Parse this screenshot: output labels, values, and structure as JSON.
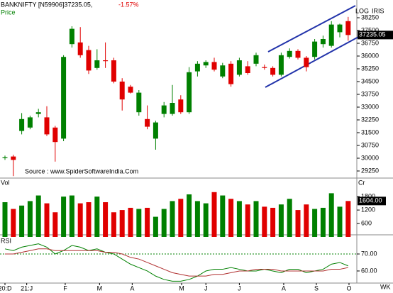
{
  "chart_data": [
    {
      "type": "candlestick",
      "title": "BANKNIFTY [N59906]37235.05,",
      "change": "-1.57%",
      "subtitle": "Price",
      "scale_label": "LOG",
      "brand": "IRIS",
      "source": "Source : www.SpiderSoftwareIndia.Com",
      "up_color": "#008000",
      "down_color": "#e00000",
      "open": [
        30000,
        30100,
        31600,
        31800,
        32600,
        32400,
        31800,
        31150,
        36700,
        36800,
        36350,
        35300,
        35750,
        35750,
        34500,
        34200,
        32700,
        32300,
        31150,
        32600,
        32600,
        33450,
        32700,
        35100,
        35450,
        35650,
        34800,
        35550,
        34900,
        35400,
        35550,
        35350,
        35300,
        34900,
        35950,
        36300,
        35900,
        35950,
        36700,
        36600,
        37400,
        38050
      ],
      "high": [
        30150,
        30200,
        32650,
        32500,
        32900,
        33050,
        31900,
        36050,
        37750,
        37700,
        36600,
        36400,
        36800,
        35900,
        34700,
        34300,
        34000,
        33100,
        32200,
        33300,
        34300,
        33700,
        35350,
        35700,
        35750,
        35900,
        35600,
        35700,
        35900,
        35700,
        36200,
        35500,
        35400,
        36200,
        36450,
        36400,
        36000,
        37000,
        37200,
        38050,
        37900,
        38300
      ],
      "low": [
        29900,
        28950,
        31400,
        31700,
        32400,
        31300,
        29800,
        31000,
        36500,
        35900,
        34950,
        35200,
        35300,
        34400,
        32800,
        33800,
        32500,
        31700,
        30500,
        32400,
        32500,
        32600,
        32600,
        34800,
        35300,
        35100,
        34700,
        34200,
        34800,
        34900,
        35400,
        35200,
        34800,
        34800,
        35850,
        35800,
        35100,
        35800,
        36500,
        36500,
        37100,
        36900
      ],
      "close": [
        30050,
        29900,
        32300,
        32400,
        32700,
        31400,
        30950,
        35950,
        37600,
        36050,
        35150,
        35750,
        35700,
        34500,
        33450,
        33850,
        33850,
        31850,
        32100,
        33100,
        33250,
        32700,
        35050,
        35550,
        35650,
        35200,
        35450,
        34350,
        35750,
        35000,
        36050,
        35300,
        34900,
        36050,
        36300,
        35900,
        35350,
        36850,
        37000,
        37850,
        37850,
        37235.05
      ],
      "last": 37235.05,
      "ylim": [
        28875,
        39292
      ],
      "yticks": [
        38250,
        37500,
        36750,
        36000,
        35250,
        34500,
        33750,
        33000,
        32250,
        31500,
        30750,
        30000,
        29250
      ],
      "xticks": [
        {
          "value": 0,
          "label": "20:D"
        },
        {
          "value": 2.6,
          "label": "21:J"
        },
        {
          "value": 7.2,
          "label": "F"
        },
        {
          "value": 11.3,
          "label": "M"
        },
        {
          "value": 15.2,
          "label": "A"
        },
        {
          "value": 21.1,
          "label": "M"
        },
        {
          "value": 24,
          "label": "J"
        },
        {
          "value": 28,
          "label": "J"
        },
        {
          "value": 33.3,
          "label": "A"
        },
        {
          "value": 37.2,
          "label": "S"
        },
        {
          "value": 41.1,
          "label": "O"
        }
      ],
      "x_unit": "WK"
    },
    {
      "type": "bar",
      "title": "Vol",
      "unit": "Cr",
      "values": [
        1550,
        1250,
        1400,
        1600,
        1850,
        1500,
        1100,
        1800,
        1850,
        1500,
        1550,
        1800,
        1550,
        1100,
        1200,
        1300,
        1250,
        1300,
        900,
        1250,
        1600,
        1700,
        1900,
        1600,
        1500,
        2000,
        1850,
        1700,
        1600,
        1450,
        1600,
        1350,
        1300,
        1450,
        1700,
        1200,
        1450,
        1250,
        1300,
        1950,
        1350,
        1604
      ],
      "last": {
        "value": 1604,
        "label": "1604.00"
      },
      "ylim": [
        0,
        2500
      ],
      "yticks": [
        600,
        1200,
        1800
      ]
    },
    {
      "type": "line",
      "title": "RSI",
      "series": [
        {
          "color": "#008000",
          "values": [
            73,
            72,
            74,
            75,
            76,
            74,
            70,
            72,
            75,
            74,
            72,
            73,
            71,
            70,
            67,
            64,
            62,
            60,
            57,
            55,
            54,
            54,
            55,
            57,
            60,
            61,
            61,
            62,
            61,
            60,
            60,
            61,
            60,
            59,
            61,
            61,
            59,
            60,
            61,
            64,
            65,
            63
          ]
        },
        {
          "color": "#b03030",
          "values": [
            70,
            70,
            71,
            72,
            73,
            73,
            72,
            72,
            72,
            72,
            72,
            72,
            71,
            71,
            70,
            68,
            67,
            65,
            63,
            61,
            59,
            58,
            57,
            57,
            57,
            58,
            58,
            59,
            60,
            60,
            61,
            61,
            61,
            60,
            60,
            60,
            60,
            60,
            60,
            61,
            61,
            62
          ]
        }
      ],
      "ylim": [
        53.3,
        79.6
      ],
      "yticks": [
        {
          "value": 70,
          "label": "70.00"
        },
        {
          "value": 60,
          "label": "60.00"
        }
      ],
      "ref_line": 70
    }
  ]
}
